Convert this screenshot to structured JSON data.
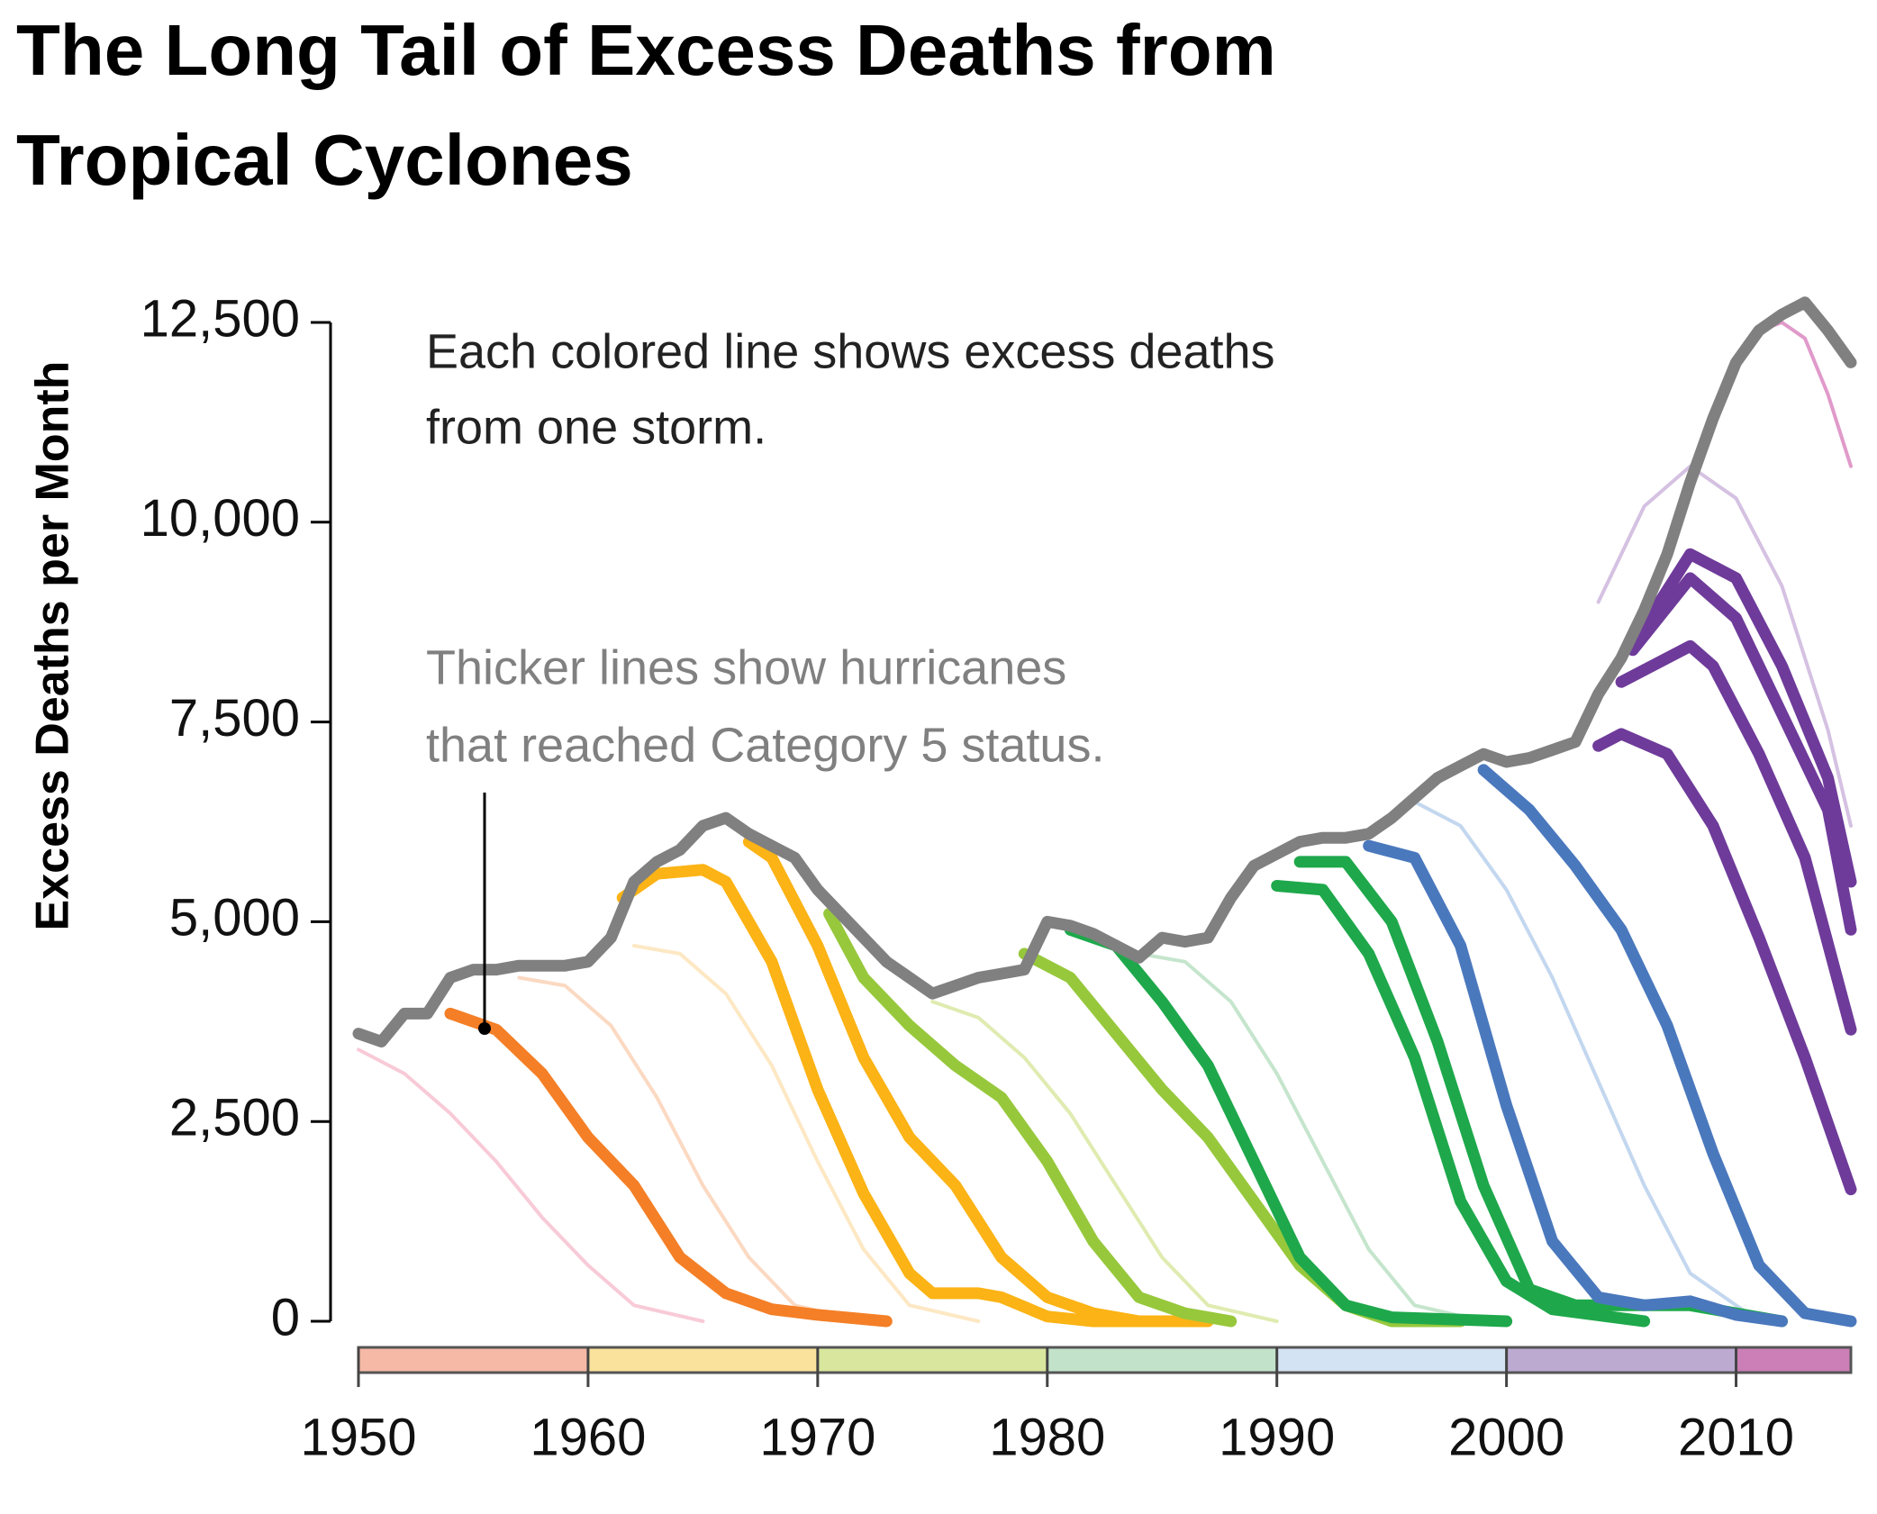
{
  "chart_data": {
    "type": "line",
    "title_lines": [
      "The Long Tail of Excess Deaths from",
      "Tropical Cyclones"
    ],
    "y_label": "Excess Deaths per Month",
    "annotations": [
      {
        "lines": [
          "Each colored line shows excess deaths",
          "from one storm."
        ],
        "color": "#222222"
      },
      {
        "lines": [
          "Thicker lines show hurricanes",
          "that reached Category 5 status."
        ],
        "color": "#808080"
      }
    ],
    "xlim": [
      1950,
      2015
    ],
    "ylim": [
      0,
      12500
    ],
    "xticks": [
      1950,
      1960,
      1970,
      1980,
      1990,
      2000,
      2010
    ],
    "yticks": [
      0,
      {
        "value": 2500,
        "label": "2,500"
      },
      {
        "value": 5000,
        "label": "5,000"
      },
      {
        "value": 7500,
        "label": "7,500"
      },
      {
        "value": 10000,
        "label": "10,000"
      },
      {
        "value": 12500,
        "label": "12,500"
      }
    ],
    "decade_colors": [
      "#f5b9a5",
      "#fbe29c",
      "#d9e69d",
      "#c3e2ca",
      "#d3e3f3",
      "#bcaad1",
      "#cb7fb6"
    ],
    "series": [
      {
        "color": "#f4a6bd",
        "thick": false,
        "opacity": 0.6,
        "x": [
          1950,
          1952,
          1954,
          1956,
          1958,
          1960,
          1962,
          1965
        ],
        "values": [
          3400,
          3100,
          2600,
          2000,
          1300,
          700,
          200,
          0
        ]
      },
      {
        "color": "#f8c09a",
        "thick": false,
        "opacity": 0.6,
        "x": [
          1957,
          1959,
          1961,
          1963,
          1965,
          1967,
          1969,
          1972
        ],
        "values": [
          4300,
          4200,
          3700,
          2800,
          1700,
          800,
          200,
          0
        ]
      },
      {
        "color": "#fbd28a",
        "thick": false,
        "opacity": 0.5,
        "x": [
          1962,
          1964,
          1966,
          1968,
          1970,
          1972,
          1974,
          1977
        ],
        "values": [
          4700,
          4600,
          4100,
          3200,
          2000,
          900,
          200,
          0
        ]
      },
      {
        "color": "#c9de7c",
        "thick": false,
        "opacity": 0.6,
        "x": [
          1975,
          1977,
          1979,
          1981,
          1983,
          1985,
          1987,
          1990
        ],
        "values": [
          4000,
          3800,
          3300,
          2600,
          1700,
          800,
          200,
          0
        ]
      },
      {
        "color": "#9fd4ab",
        "thick": false,
        "opacity": 0.6,
        "x": [
          1984,
          1986,
          1988,
          1990,
          1992,
          1994,
          1996,
          1999
        ],
        "values": [
          4600,
          4500,
          4000,
          3100,
          2000,
          900,
          200,
          0
        ]
      },
      {
        "color": "#a9c6e8",
        "thick": false,
        "opacity": 0.7,
        "x": [
          1996,
          1998,
          2000,
          2002,
          2004,
          2006,
          2008,
          2011
        ],
        "values": [
          6500,
          6200,
          5400,
          4300,
          3000,
          1700,
          600,
          0
        ]
      },
      {
        "color": "#c3a7d6",
        "thick": false,
        "opacity": 0.7,
        "x": [
          2004,
          2006,
          2008,
          2010,
          2012,
          2014,
          2015
        ],
        "values": [
          9000,
          10200,
          10700,
          10300,
          9200,
          7400,
          6200
        ]
      },
      {
        "color": "#dd8fc4",
        "thick": false,
        "opacity": 0.9,
        "x": [
          2011,
          2012,
          2013,
          2014,
          2015
        ],
        "values": [
          12400,
          12500,
          12300,
          11600,
          10700
        ]
      },
      {
        "color": "#f47f26",
        "thick": true,
        "x": [
          1954,
          1956,
          1958,
          1960,
          1962,
          1964,
          1966,
          1968,
          1970,
          1973
        ],
        "values": [
          3850,
          3650,
          3100,
          2300,
          1700,
          800,
          350,
          150,
          80,
          0
        ]
      },
      {
        "color": "#fbb315",
        "thick": true,
        "x": [
          1961.5,
          1963,
          1965,
          1966,
          1968,
          1970,
          1972,
          1974,
          1975,
          1977,
          1978,
          1980,
          1982,
          1987
        ],
        "values": [
          5300,
          5600,
          5650,
          5500,
          4500,
          2900,
          1600,
          600,
          350,
          350,
          300,
          60,
          0,
          0
        ]
      },
      {
        "color": "#fbb315",
        "thick": true,
        "x": [
          1967,
          1968,
          1970,
          1972,
          1974,
          1976,
          1978,
          1980,
          1982,
          1984,
          1986
        ],
        "values": [
          6000,
          5800,
          4700,
          3300,
          2300,
          1700,
          800,
          300,
          100,
          0,
          0
        ]
      },
      {
        "color": "#97c83c",
        "thick": true,
        "x": [
          1970.5,
          1972,
          1974,
          1976,
          1978,
          1980,
          1982,
          1984,
          1986,
          1988
        ],
        "values": [
          5100,
          4300,
          3700,
          3200,
          2800,
          2000,
          1000,
          300,
          100,
          0
        ]
      },
      {
        "color": "#97c83c",
        "thick": true,
        "x": [
          1979,
          1981,
          1983,
          1985,
          1987,
          1989,
          1991,
          1993,
          1995,
          1998
        ],
        "values": [
          4600,
          4300,
          3600,
          2900,
          2300,
          1500,
          700,
          200,
          0,
          0
        ]
      },
      {
        "color": "#1ea84b",
        "thick": true,
        "x": [
          1981,
          1983,
          1985,
          1987,
          1989,
          1991,
          1993,
          1995,
          2000
        ],
        "values": [
          4900,
          4700,
          4000,
          3200,
          2000,
          800,
          200,
          50,
          0
        ]
      },
      {
        "color": "#1ea84b",
        "thick": true,
        "x": [
          1990,
          1992,
          1994,
          1996,
          1998,
          2000,
          2002,
          2006
        ],
        "values": [
          5450,
          5400,
          4600,
          3300,
          1500,
          500,
          150,
          0
        ]
      },
      {
        "color": "#1ea84b",
        "thick": true,
        "x": [
          1991,
          1993,
          1995,
          1997,
          1999,
          2001,
          2003,
          2006,
          2008,
          2012
        ],
        "values": [
          5750,
          5750,
          5000,
          3500,
          1700,
          400,
          200,
          200,
          200,
          0
        ]
      },
      {
        "color": "#4a78bd",
        "thick": true,
        "x": [
          1994,
          1996,
          1998,
          2000,
          2002,
          2004,
          2006,
          2008,
          2010,
          2012
        ],
        "values": [
          5950,
          5800,
          4700,
          2700,
          1000,
          300,
          200,
          250,
          80,
          0
        ]
      },
      {
        "color": "#4a78bd",
        "thick": true,
        "x": [
          1999,
          2001,
          2003,
          2005,
          2007,
          2009,
          2011,
          2013,
          2015
        ],
        "values": [
          6900,
          6400,
          5700,
          4900,
          3700,
          2100,
          700,
          100,
          0
        ]
      },
      {
        "color": "#6e3b9a",
        "thick": true,
        "x": [
          2004,
          2005,
          2007,
          2009,
          2011,
          2013,
          2015
        ],
        "values": [
          7200,
          7350,
          7100,
          6200,
          4800,
          3300,
          1650
        ]
      },
      {
        "color": "#6e3b9a",
        "thick": true,
        "x": [
          2005,
          2008,
          2009,
          2011,
          2013,
          2015
        ],
        "values": [
          8000,
          8450,
          8200,
          7100,
          5800,
          3650
        ]
      },
      {
        "color": "#6e3b9a",
        "thick": true,
        "x": [
          2005.5,
          2008,
          2010,
          2012,
          2014,
          2015
        ],
        "values": [
          8400,
          9300,
          8800,
          7600,
          6400,
          4900
        ]
      },
      {
        "color": "#6e3b9a",
        "thick": true,
        "x": [
          2006,
          2008,
          2010,
          2012,
          2014,
          2015
        ],
        "values": [
          8700,
          9600,
          9300,
          8200,
          6800,
          5500
        ]
      },
      {
        "color": "#808080",
        "thick": true,
        "x": [
          1950,
          1951,
          1952,
          1953,
          1954,
          1955,
          1956,
          1957,
          1958,
          1959,
          1960,
          1961,
          1962,
          1963,
          1964,
          1965,
          1966,
          1967,
          1968,
          1969,
          1970,
          1971,
          1972,
          1973,
          1974,
          1975,
          1976,
          1977,
          1978,
          1979,
          1980,
          1981,
          1982,
          1983,
          1984,
          1985,
          1986,
          1987,
          1988,
          1989,
          1990,
          1991,
          1992,
          1993,
          1994,
          1995,
          1996,
          1997,
          1998,
          1999,
          2000,
          2001,
          2002,
          2003,
          2004,
          2005,
          2006,
          2007,
          2008,
          2009,
          2010,
          2011,
          2012,
          2013,
          2014,
          2015
        ],
        "values": [
          3600,
          3500,
          3850,
          3850,
          4300,
          4400,
          4400,
          4450,
          4450,
          4450,
          4500,
          4800,
          5500,
          5750,
          5900,
          6200,
          6300,
          6100,
          5950,
          5800,
          5400,
          5100,
          4800,
          4500,
          4300,
          4100,
          4200,
          4300,
          4350,
          4400,
          5000,
          4950,
          4850,
          4700,
          4550,
          4800,
          4750,
          4800,
          5300,
          5700,
          5850,
          6000,
          6050,
          6050,
          6100,
          6300,
          6550,
          6800,
          6950,
          7100,
          7000,
          7050,
          7150,
          7250,
          7850,
          8300,
          8900,
          9600,
          10500,
          11300,
          12000,
          12400,
          12600,
          12750,
          12400,
          12000
        ]
      }
    ]
  }
}
